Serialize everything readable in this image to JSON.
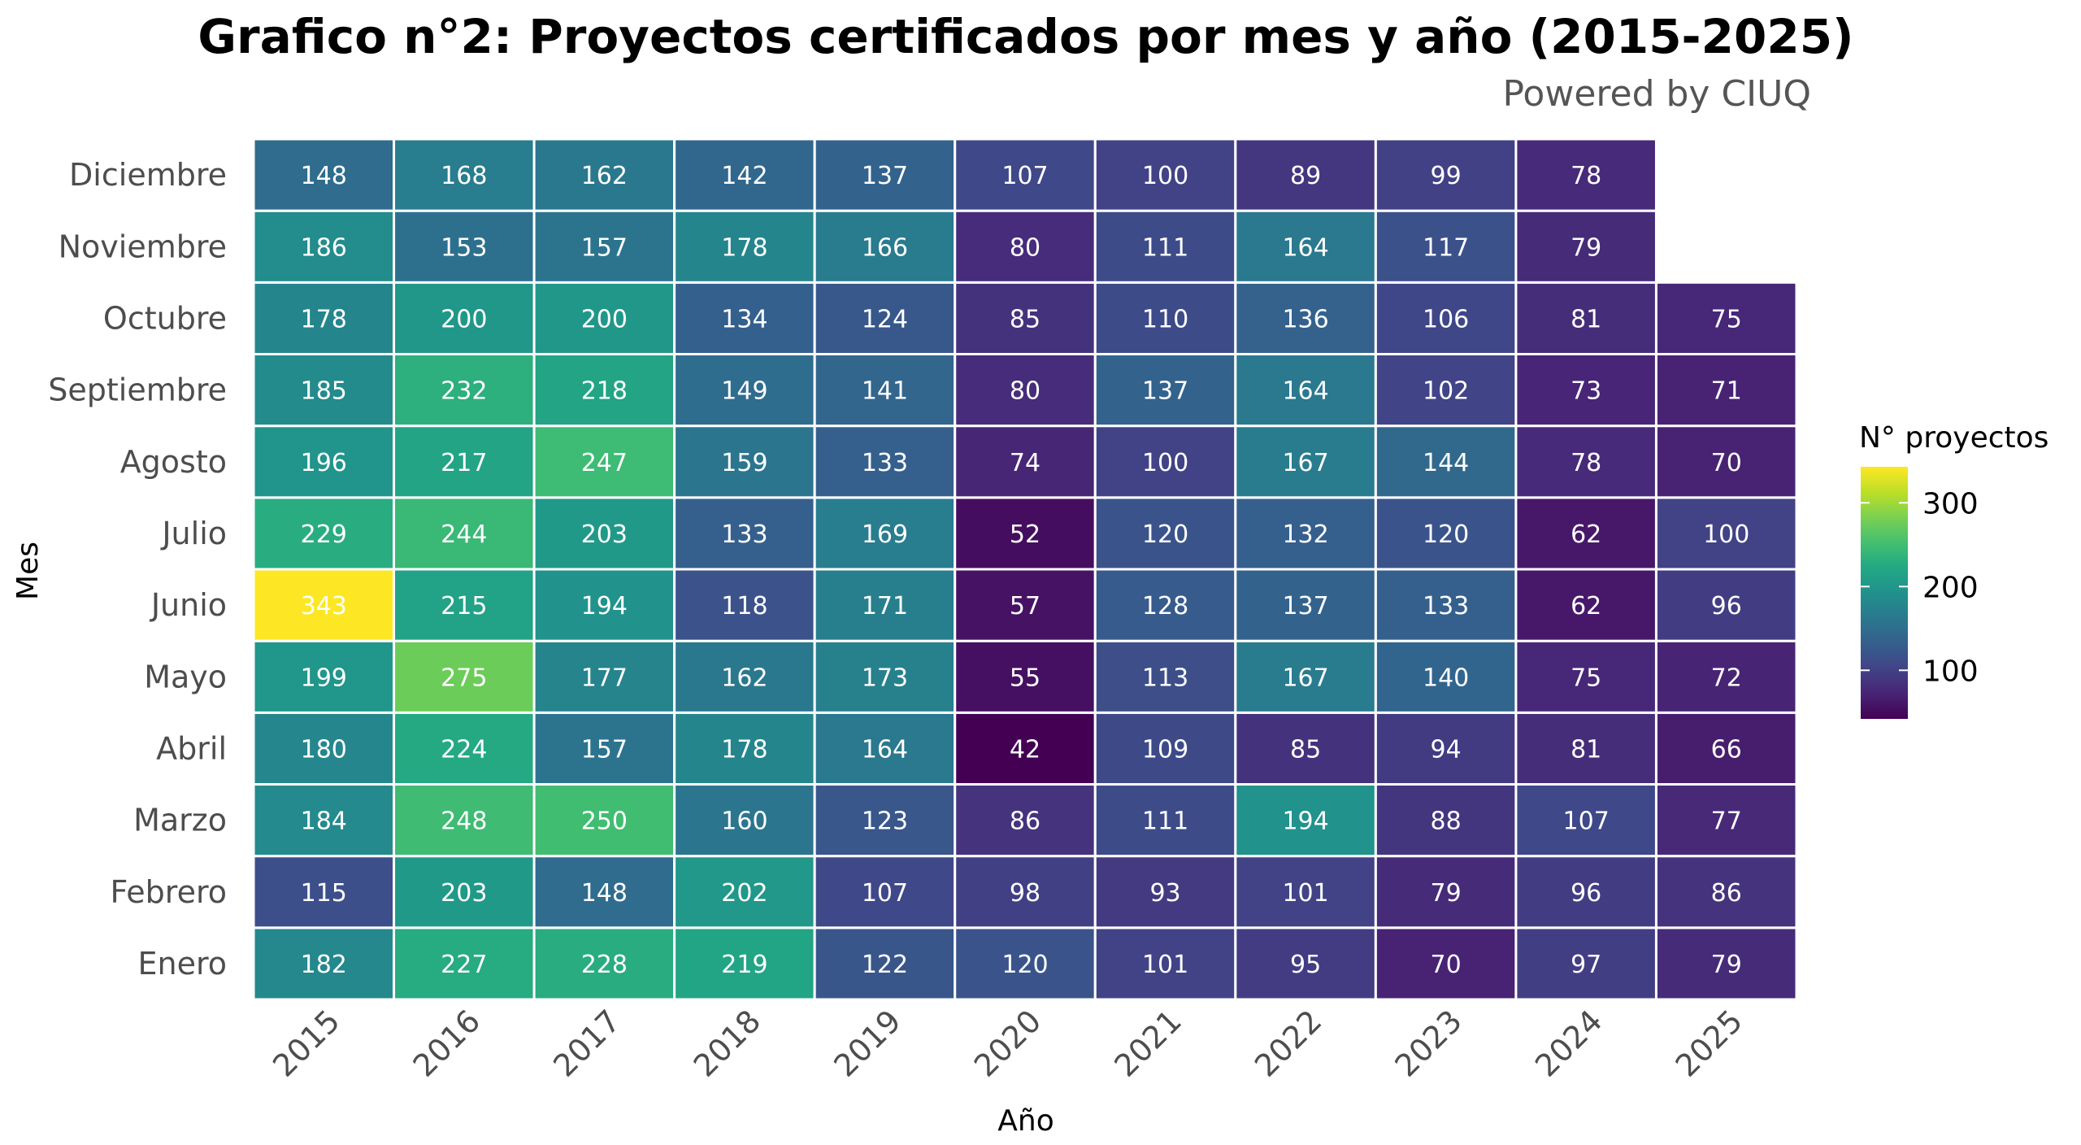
{
  "chart_data": {
    "type": "heatmap",
    "title": "Grafico n°2: Proyectos certificados por mes y año (2015-2025)",
    "subtitle": "Powered by CIUQ",
    "xlabel": "Año",
    "ylabel": "Mes",
    "x": [
      "2015",
      "2016",
      "2017",
      "2018",
      "2019",
      "2020",
      "2021",
      "2022",
      "2023",
      "2024",
      "2025"
    ],
    "y": [
      "Enero",
      "Febrero",
      "Marzo",
      "Abril",
      "Mayo",
      "Junio",
      "Julio",
      "Agosto",
      "Septiembre",
      "Octubre",
      "Noviembre",
      "Diciembre"
    ],
    "values": [
      [
        182,
        227,
        228,
        219,
        122,
        120,
        101,
        95,
        70,
        97,
        79
      ],
      [
        115,
        203,
        148,
        202,
        107,
        98,
        93,
        101,
        79,
        96,
        86
      ],
      [
        184,
        248,
        250,
        160,
        123,
        86,
        111,
        194,
        88,
        107,
        77
      ],
      [
        180,
        224,
        157,
        178,
        164,
        42,
        109,
        85,
        94,
        81,
        66
      ],
      [
        199,
        275,
        177,
        162,
        173,
        55,
        113,
        167,
        140,
        75,
        72
      ],
      [
        343,
        215,
        194,
        118,
        171,
        57,
        128,
        137,
        133,
        62,
        96
      ],
      [
        229,
        244,
        203,
        133,
        169,
        52,
        120,
        132,
        120,
        62,
        100
      ],
      [
        196,
        217,
        247,
        159,
        133,
        74,
        100,
        167,
        144,
        78,
        70
      ],
      [
        185,
        232,
        218,
        149,
        141,
        80,
        137,
        164,
        102,
        73,
        71
      ],
      [
        178,
        200,
        200,
        134,
        124,
        85,
        110,
        136,
        106,
        81,
        75
      ],
      [
        186,
        153,
        157,
        178,
        166,
        80,
        111,
        164,
        117,
        79,
        null
      ],
      [
        148,
        168,
        162,
        142,
        137,
        107,
        100,
        89,
        99,
        78,
        null
      ]
    ],
    "colorscale": "viridis",
    "color_range": [
      42,
      343
    ],
    "legend": {
      "title": "N° proyectos",
      "ticks": [
        100,
        200,
        300
      ],
      "placement": "right"
    }
  }
}
